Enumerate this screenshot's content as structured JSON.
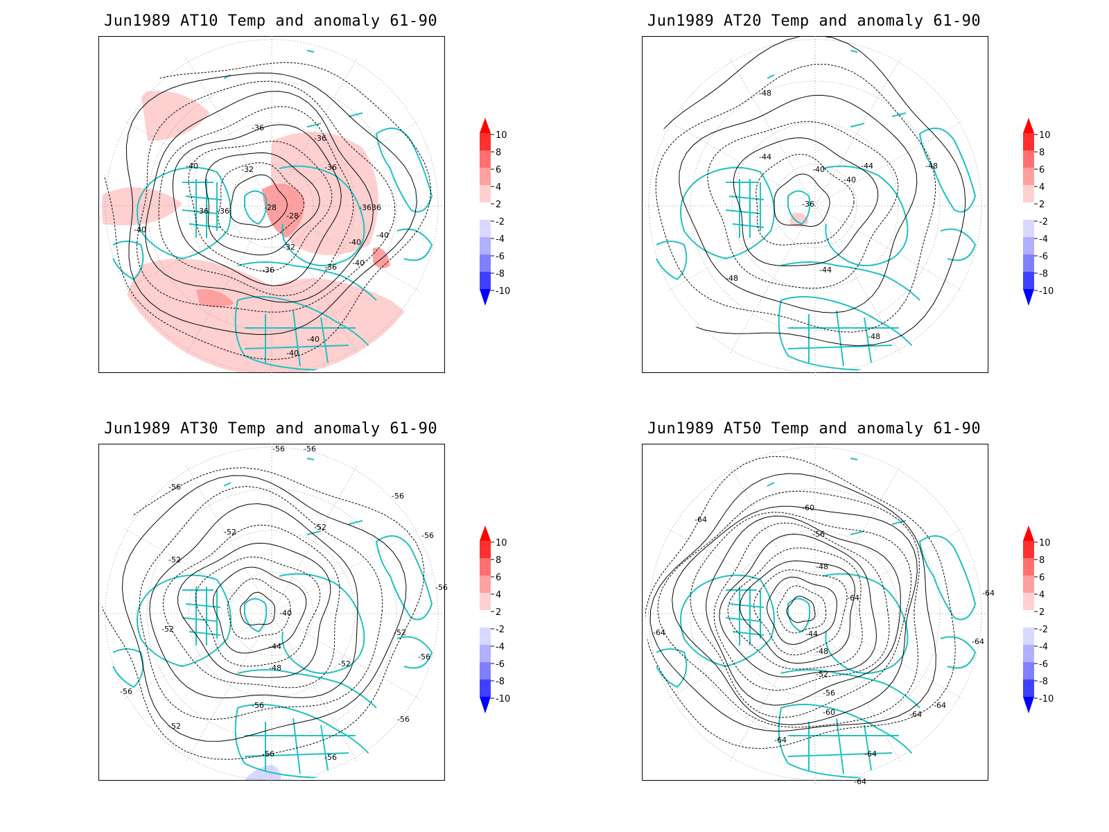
{
  "panels": [
    {
      "title": "Jun1989 AT10 Temp and anomaly 61-90",
      "contour_labels": [
        "-36",
        "-36",
        "-40",
        "-32",
        "-36",
        "-36",
        "-36",
        "-28",
        "-28",
        "-3636",
        "-40",
        "-40",
        "-32",
        "-40",
        "-36",
        "-36",
        "-40",
        "-40",
        "-40"
      ]
    },
    {
      "title": "Jun1989 AT20 Temp and anomaly 61-90",
      "contour_labels": [
        "-48",
        "-44",
        "-40",
        "-44",
        "-40",
        "-48",
        "-36",
        "-44",
        "-48",
        "-48"
      ]
    },
    {
      "title": "Jun1989 AT30 Temp and anomaly 61-90",
      "contour_labels": [
        "-56",
        "-56",
        "-56",
        "-56",
        "-52",
        "-52",
        "-52",
        "-56",
        "-40",
        "-52",
        "-44",
        "-48",
        "-52",
        "-56",
        "-52",
        "-56",
        "-56",
        "-52",
        "-56",
        "-56",
        "-56",
        "-56"
      ]
    },
    {
      "title": "Jun1989 AT50 Temp and anomaly 61-90",
      "contour_labels": [
        "-64",
        "-60",
        "-56",
        "-48",
        "-64",
        "-64",
        "-64",
        "-44",
        "-48",
        "-64",
        "-52",
        "-56",
        "-60",
        "-64",
        "-64",
        "-64",
        "-64",
        "-64"
      ]
    }
  ],
  "colorbar": {
    "labels": [
      "10",
      "8",
      "6",
      "4",
      "2",
      "-2",
      "-4",
      "-6",
      "-8",
      "-10"
    ],
    "colors": [
      "#ff3030",
      "#ff7070",
      "#ffa0a0",
      "#ffd0d0",
      "#ffffff",
      "#d8d8ff",
      "#b0b0ff",
      "#8080ff",
      "#4040ff"
    ],
    "top_arrow_color": "#ff0000",
    "bottom_arrow_color": "#0000ff"
  },
  "colors": {
    "coastline": "#20c0c0",
    "anomaly_fill": "#ffd0d0",
    "anomaly_strong": "#ffa0a0",
    "negative_fill": "#d8d8ff"
  }
}
